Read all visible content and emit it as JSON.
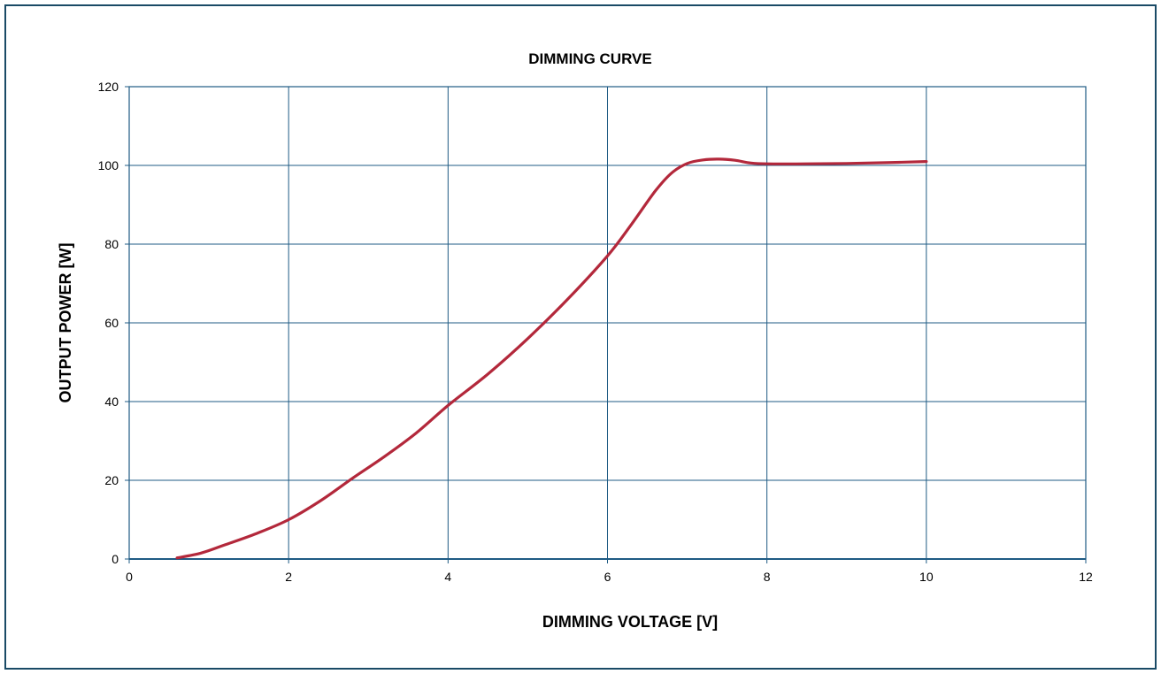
{
  "chart_data": {
    "type": "line",
    "title": "DIMMING CURVE",
    "xlabel": "DIMMING VOLTAGE [V]",
    "ylabel": "OUTPUT POWER [W]",
    "xlim": [
      0,
      12
    ],
    "ylim": [
      0,
      120
    ],
    "x_ticks": [
      "0",
      "2",
      "4",
      "6",
      "8",
      "10",
      "12"
    ],
    "y_ticks": [
      "0",
      "20",
      "40",
      "60",
      "80",
      "100",
      "120"
    ],
    "grid": true,
    "legend": "none",
    "series": [
      {
        "color": "#b3283b",
        "x": [
          0.6,
          0.9,
          1.2,
          1.6,
          2.0,
          2.4,
          2.8,
          3.2,
          3.6,
          4.0,
          4.5,
          5.0,
          5.5,
          6.0,
          6.3,
          6.6,
          6.8,
          7.0,
          7.2,
          7.4,
          7.6,
          7.8,
          8.0,
          8.5,
          9.0,
          9.5,
          10.0
        ],
        "y": [
          0.3,
          1.5,
          3.6,
          6.5,
          10.0,
          14.8,
          20.5,
          26.0,
          32.0,
          39.0,
          47.0,
          56.0,
          66.0,
          77.0,
          85.0,
          93.5,
          98.0,
          100.5,
          101.4,
          101.6,
          101.3,
          100.6,
          100.4,
          100.4,
          100.5,
          100.7,
          101.0
        ]
      }
    ]
  }
}
